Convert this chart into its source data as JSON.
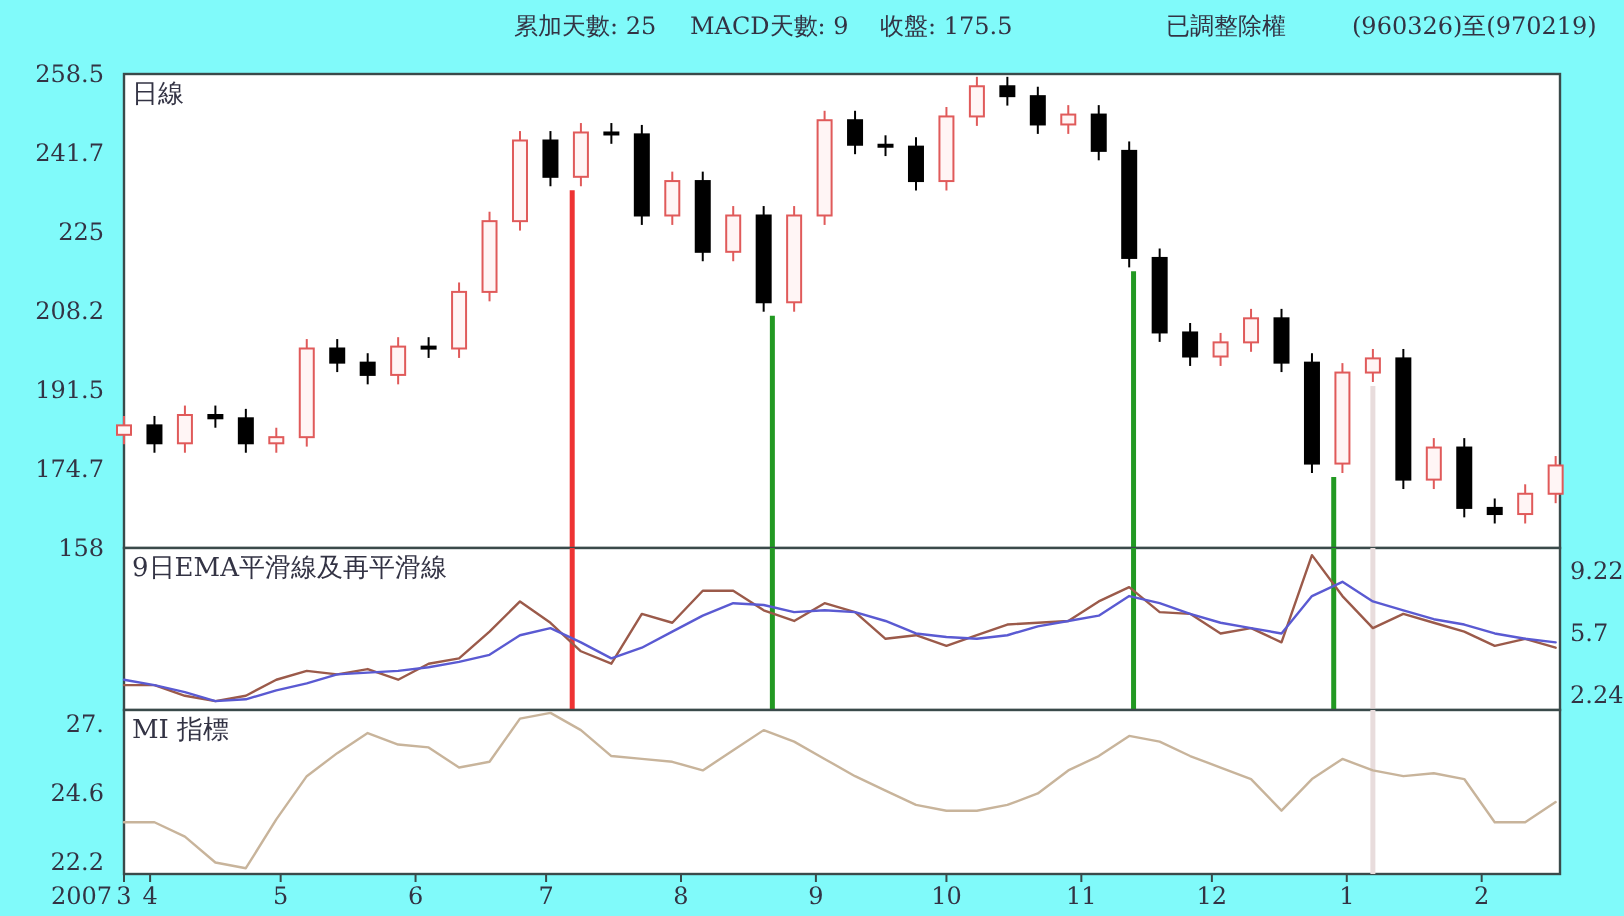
{
  "chart_data": [
    {
      "type": "candlestick",
      "title": "日線",
      "annotations": [
        "累加天數: 25",
        "MACD天數: 9",
        "收盤: 175.5",
        "已調整除權",
        "(960326)至(970219)"
      ],
      "x": [
        "2007-03-26",
        "2007-04-02",
        "2007-04-09",
        "2007-04-16",
        "2007-04-23",
        "2007-04-30",
        "2007-05-07",
        "2007-05-14",
        "2007-05-21",
        "2007-05-28",
        "2007-06-04",
        "2007-06-11",
        "2007-06-18",
        "2007-06-25",
        "2007-07-02",
        "2007-07-09",
        "2007-07-16",
        "2007-07-23",
        "2007-07-30",
        "2007-08-06",
        "2007-08-13",
        "2007-08-20",
        "2007-08-27",
        "2007-09-03",
        "2007-09-10",
        "2007-09-17",
        "2007-09-24",
        "2007-10-01",
        "2007-10-08",
        "2007-10-15",
        "2007-10-22",
        "2007-10-29",
        "2007-11-05",
        "2007-11-12",
        "2007-11-19",
        "2007-11-26",
        "2007-12-03",
        "2007-12-10",
        "2007-12-17",
        "2007-12-24",
        "2007-12-31",
        "2008-01-07",
        "2008-01-14",
        "2008-01-21",
        "2008-01-28",
        "2008-02-04",
        "2008-02-11",
        "2008-02-18"
      ],
      "ohlc": [
        [
          182.0,
          186.0,
          180.0,
          184.0
        ],
        [
          184.0,
          186.0,
          178.2,
          180.2
        ],
        [
          180.2,
          188.2,
          178.2,
          186.2
        ],
        [
          186.2,
          188.2,
          183.5,
          185.5
        ],
        [
          185.5,
          187.5,
          178.2,
          180.2
        ],
        [
          180.2,
          183.5,
          178.2,
          181.5
        ],
        [
          181.5,
          202.3,
          179.5,
          200.3
        ],
        [
          200.3,
          202.3,
          195.3,
          197.3
        ],
        [
          197.3,
          199.3,
          192.7,
          194.7
        ],
        [
          194.7,
          202.7,
          192.7,
          200.7
        ],
        [
          200.7,
          202.7,
          198.3,
          200.3
        ],
        [
          200.3,
          214.3,
          198.3,
          212.3
        ],
        [
          212.3,
          229.3,
          210.3,
          227.3
        ],
        [
          227.3,
          246.4,
          225.3,
          244.4
        ],
        [
          244.4,
          246.4,
          234.7,
          236.7
        ],
        [
          236.7,
          248.1,
          234.7,
          246.1
        ],
        [
          246.1,
          248.1,
          243.7,
          245.7
        ],
        [
          245.7,
          247.7,
          226.5,
          228.5
        ],
        [
          228.5,
          237.8,
          226.5,
          235.8
        ],
        [
          235.8,
          237.8,
          218.8,
          220.8
        ],
        [
          220.8,
          230.5,
          218.8,
          228.5
        ],
        [
          228.5,
          230.5,
          208.1,
          210.1
        ],
        [
          210.1,
          230.5,
          208.1,
          228.5
        ],
        [
          228.5,
          250.7,
          226.5,
          248.7
        ],
        [
          248.7,
          250.7,
          241.5,
          243.5
        ],
        [
          243.5,
          245.5,
          241.1,
          243.1
        ],
        [
          243.1,
          245.1,
          233.8,
          235.8
        ],
        [
          235.8,
          251.5,
          233.8,
          249.5
        ],
        [
          249.5,
          257.9,
          247.5,
          255.9
        ],
        [
          255.9,
          257.9,
          251.8,
          253.8
        ],
        [
          253.8,
          255.8,
          245.8,
          247.8
        ],
        [
          247.8,
          251.9,
          245.8,
          249.9
        ],
        [
          249.9,
          251.9,
          240.2,
          242.2
        ],
        [
          242.2,
          244.2,
          217.5,
          219.5
        ],
        [
          219.5,
          221.5,
          201.7,
          203.7
        ],
        [
          203.7,
          205.7,
          196.6,
          198.6
        ],
        [
          198.6,
          203.6,
          196.6,
          201.6
        ],
        [
          201.6,
          208.7,
          199.6,
          206.7
        ],
        [
          206.7,
          208.7,
          195.3,
          197.3
        ],
        [
          197.3,
          199.3,
          173.9,
          175.9
        ],
        [
          175.9,
          197.2,
          173.9,
          195.2
        ],
        [
          195.2,
          200.2,
          193.2,
          198.2
        ],
        [
          198.2,
          200.2,
          170.5,
          172.5
        ],
        [
          172.5,
          181.3,
          170.5,
          179.3
        ],
        [
          179.3,
          181.3,
          164.5,
          166.5
        ],
        [
          166.5,
          168.5,
          163.2,
          165.2
        ],
        [
          165.2,
          171.5,
          163.2,
          169.5
        ],
        [
          169.5,
          177.5,
          167.5,
          175.5
        ]
      ],
      "xlim": [
        "2007-03-26",
        "2008-02-19"
      ],
      "ylim": [
        158,
        258.5
      ],
      "yticks": [
        158,
        174.7,
        191.5,
        208.2,
        225,
        241.7,
        258.5
      ],
      "tick_labels": "y",
      "ref_lines": [
        {
          "axis": "x",
          "value": "2007-07-07",
          "color": "#ee3333"
        },
        {
          "axis": "x",
          "value": "2007-08-22",
          "color": "#229922"
        },
        {
          "axis": "x",
          "value": "2007-11-13",
          "color": "#229922"
        },
        {
          "axis": "x",
          "value": "2007-12-29",
          "color": "#229922"
        },
        {
          "axis": "x",
          "value": "2008-01-07",
          "color": "#e8dcdc"
        }
      ]
    },
    {
      "type": "line",
      "title": "9日EMA平滑線及再平滑線",
      "x": [
        "2007-03-26",
        "2007-04-02",
        "2007-04-09",
        "2007-04-16",
        "2007-04-23",
        "2007-04-30",
        "2007-05-07",
        "2007-05-14",
        "2007-05-21",
        "2007-05-28",
        "2007-06-04",
        "2007-06-11",
        "2007-06-18",
        "2007-06-25",
        "2007-07-02",
        "2007-07-09",
        "2007-07-16",
        "2007-07-23",
        "2007-07-30",
        "2007-08-06",
        "2007-08-13",
        "2007-08-20",
        "2007-08-27",
        "2007-09-03",
        "2007-09-10",
        "2007-09-17",
        "2007-09-24",
        "2007-10-01",
        "2007-10-08",
        "2007-10-15",
        "2007-10-22",
        "2007-10-29",
        "2007-11-05",
        "2007-11-12",
        "2007-11-19",
        "2007-11-26",
        "2007-12-03",
        "2007-12-10",
        "2007-12-17",
        "2007-12-24",
        "2007-12-31",
        "2008-01-07",
        "2008-01-14",
        "2008-01-21",
        "2008-01-28",
        "2008-02-04",
        "2008-02-11",
        "2008-02-18"
      ],
      "series": [
        {
          "color": "#9b5a4a",
          "values": [
            2.8,
            2.8,
            2.2,
            1.9,
            2.2,
            3.1,
            3.6,
            3.4,
            3.7,
            3.1,
            4.0,
            4.3,
            5.8,
            7.5,
            6.3,
            4.7,
            4.0,
            6.8,
            6.3,
            8.1,
            8.1,
            7.0,
            6.4,
            7.4,
            6.9,
            5.4,
            5.6,
            5.0,
            5.6,
            6.2,
            6.3,
            6.4,
            7.5,
            8.3,
            6.9,
            6.8,
            5.7,
            6.0,
            5.2,
            10.1,
            7.8,
            6.0,
            6.8,
            6.3,
            5.8,
            5.0,
            5.4,
            4.9
          ]
        },
        {
          "color": "#5a5ad2",
          "values": [
            3.1,
            2.8,
            2.4,
            1.9,
            2.0,
            2.5,
            2.9,
            3.4,
            3.5,
            3.6,
            3.8,
            4.1,
            4.5,
            5.6,
            6.0,
            5.2,
            4.3,
            4.9,
            5.8,
            6.7,
            7.4,
            7.3,
            6.9,
            7.0,
            6.9,
            6.4,
            5.7,
            5.5,
            5.4,
            5.6,
            6.1,
            6.4,
            6.7,
            7.8,
            7.4,
            6.8,
            6.3,
            6.0,
            5.7,
            7.8,
            8.6,
            7.5,
            7.0,
            6.5,
            6.2,
            5.7,
            5.4,
            5.2
          ]
        }
      ],
      "xlim": [
        "2007-03-26",
        "2008-02-19"
      ],
      "ylim": [
        1.4,
        10.5
      ],
      "yticks": [
        2.24,
        5.7,
        9.22
      ],
      "tick_labels": "y",
      "ref_lines": [
        {
          "axis": "x",
          "value": "2007-07-07",
          "color": "#ee3333"
        },
        {
          "axis": "x",
          "value": "2007-08-22",
          "color": "#229922"
        },
        {
          "axis": "x",
          "value": "2007-11-13",
          "color": "#229922"
        },
        {
          "axis": "x",
          "value": "2007-12-29",
          "color": "#229922"
        },
        {
          "axis": "x",
          "value": "2008-01-07",
          "color": "#e8dcdc"
        }
      ]
    },
    {
      "type": "line",
      "title": "MI 指標",
      "xlabel": "2007",
      "x": [
        "2007-03-26",
        "2007-04-02",
        "2007-04-09",
        "2007-04-16",
        "2007-04-23",
        "2007-04-30",
        "2007-05-07",
        "2007-05-14",
        "2007-05-21",
        "2007-05-28",
        "2007-06-04",
        "2007-06-11",
        "2007-06-18",
        "2007-06-25",
        "2007-07-02",
        "2007-07-09",
        "2007-07-16",
        "2007-07-23",
        "2007-07-30",
        "2007-08-06",
        "2007-08-13",
        "2007-08-20",
        "2007-08-27",
        "2007-09-03",
        "2007-09-10",
        "2007-09-17",
        "2007-09-24",
        "2007-10-01",
        "2007-10-08",
        "2007-10-15",
        "2007-10-22",
        "2007-10-29",
        "2007-11-05",
        "2007-11-12",
        "2007-11-19",
        "2007-11-26",
        "2007-12-03",
        "2007-12-10",
        "2007-12-17",
        "2007-12-24",
        "2007-12-31",
        "2008-01-07",
        "2008-01-14",
        "2008-01-21",
        "2008-01-28",
        "2008-02-04",
        "2008-02-11",
        "2008-02-18"
      ],
      "series": [
        {
          "color": "#c8b49b",
          "values": [
            23.6,
            23.6,
            23.1,
            22.2,
            22.0,
            23.7,
            25.2,
            26.0,
            26.7,
            26.3,
            26.2,
            25.5,
            25.7,
            27.2,
            27.4,
            26.8,
            25.9,
            25.8,
            25.7,
            25.4,
            26.1,
            26.8,
            26.4,
            25.8,
            25.2,
            24.7,
            24.2,
            24.0,
            24.0,
            24.2,
            24.6,
            25.4,
            25.9,
            26.6,
            26.4,
            25.9,
            25.5,
            25.1,
            24.0,
            25.1,
            25.8,
            25.4,
            25.2,
            25.3,
            25.1,
            23.6,
            23.6,
            24.3
          ]
        }
      ],
      "xlim": [
        "2007-03-26",
        "2008-02-19"
      ],
      "ylim": [
        21.8,
        27.5
      ],
      "yticks": [
        {
          "value": 27,
          "label": "27."
        },
        24.6,
        22.2
      ],
      "xticks": [
        {
          "value": "2007-03-26",
          "label": "3"
        },
        {
          "value": "2007-04-01",
          "label": "4"
        },
        {
          "value": "2007-05-01",
          "label": "5"
        },
        {
          "value": "2007-06-01",
          "label": "6"
        },
        {
          "value": "2007-07-01",
          "label": "7"
        },
        {
          "value": "2007-08-01",
          "label": "8"
        },
        {
          "value": "2007-09-01",
          "label": "9"
        },
        {
          "value": "2007-10-01",
          "label": "10"
        },
        {
          "value": "2007-11-01",
          "label": "11"
        },
        {
          "value": "2007-12-01",
          "label": "12"
        },
        {
          "value": "2008-01-01",
          "label": "1"
        },
        {
          "value": "2008-02-01",
          "label": "2"
        }
      ],
      "ref_lines": [
        {
          "axis": "x",
          "value": "2008-01-07",
          "color": "#e8dcdc"
        }
      ]
    }
  ]
}
